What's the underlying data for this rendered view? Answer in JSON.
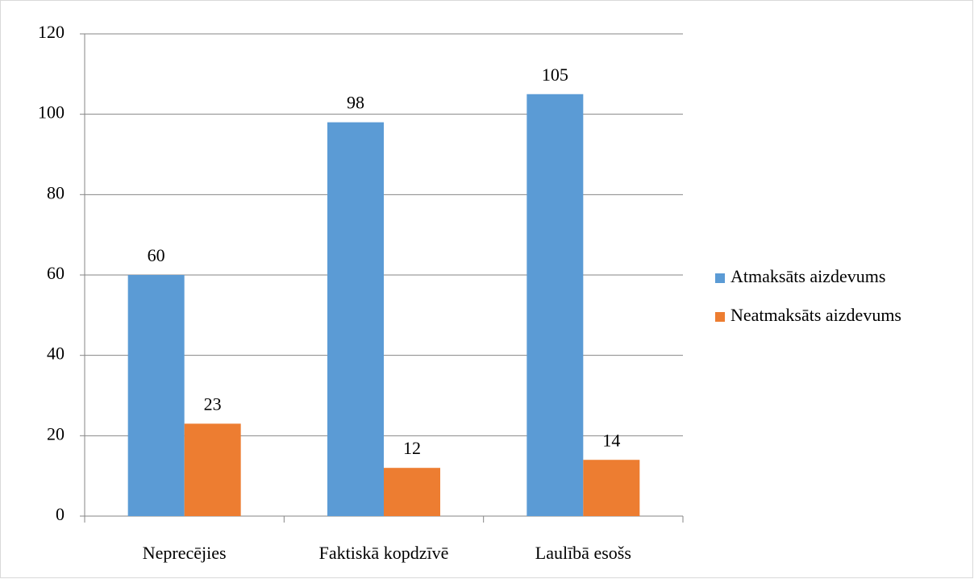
{
  "chart_data": {
    "type": "bar",
    "categories": [
      "Neprecējies",
      "Faktiskā kopdzīvē",
      "Laulībā esošs"
    ],
    "series": [
      {
        "name": "Atmaksāts aizdevums",
        "color": "#5b9bd5",
        "values": [
          60,
          98,
          105
        ]
      },
      {
        "name": "Neatmaksāts aizdevums",
        "color": "#ed7d31",
        "values": [
          23,
          12,
          14
        ]
      }
    ],
    "ylim": [
      0,
      120
    ],
    "yticks": [
      0,
      20,
      40,
      60,
      80,
      100,
      120
    ],
    "grid": true,
    "legend": "right"
  }
}
